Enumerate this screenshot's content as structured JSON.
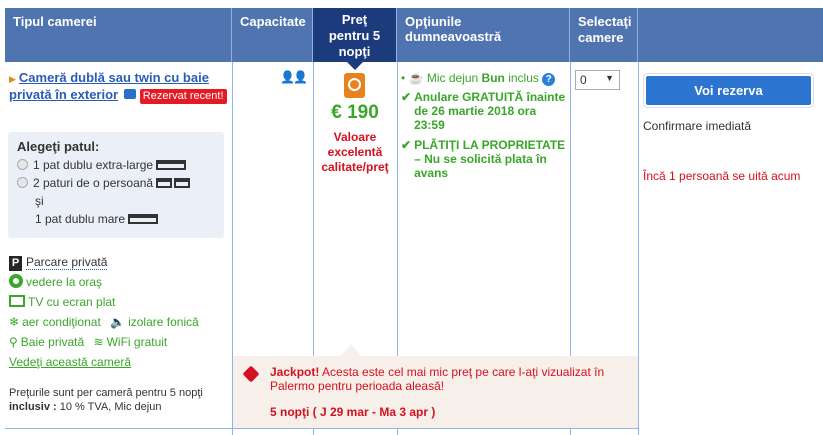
{
  "header": {
    "room_type": "Tipul camerei",
    "capacity": "Capacitate",
    "price": "Preţ pentru 5 nopţi",
    "options": "Opţiunile dumneavoastră",
    "select": "Selectaţi camere"
  },
  "room": {
    "name": "Cameră dublă sau twin cu baie privată în exterior",
    "badge": "Rezervat recent!",
    "bed_title": "Alegeţi patul:",
    "bed_option_1": "1 pat dublu extra-large",
    "bed_option_2a": "2 paturi de o persoană",
    "bed_option_2b": "şi",
    "bed_option_2c": "1 pat dublu mare",
    "parking": "Parcare privată",
    "facilities": [
      "vedere la oraş",
      "TV cu ecran plat",
      "aer condiţionat",
      "izolare fonică",
      "Baie privată",
      "WiFi gratuit"
    ],
    "view_room": "Vedeţi această cameră",
    "prices_note": "Preţurile sunt per cameră pentru 5 nopţi",
    "included_label": "inclusiv :",
    "included": "10 % TVA, Mic dejun"
  },
  "price": {
    "amount": "€ 190",
    "value_label": "Valoare excelentă calitate/preţ"
  },
  "options": {
    "breakfast_pre": "Mic dejun ",
    "breakfast_bold": "Bun",
    "breakfast_post": " inclus",
    "cancel": "Anulare GRATUITĂ înainte de 26 martie 2018 ora 23:59",
    "pay": "PLĂTIŢI LA PROPRIETATE – Nu se solicită plata în avans"
  },
  "select": {
    "value": "0"
  },
  "reserve": {
    "button": "Voi rezerva",
    "confirm": "Confirmare imediată",
    "watching": "Încă 1 persoană se uită acum"
  },
  "jackpot": {
    "bold": "Jackpot!",
    "text": " Acesta este cel mai mic preţ pe care l-aţi vizualizat în Palermo pentru perioada aleasă!",
    "dates": "5 nopţi ( J 29 mar - Ma 3 apr )"
  }
}
